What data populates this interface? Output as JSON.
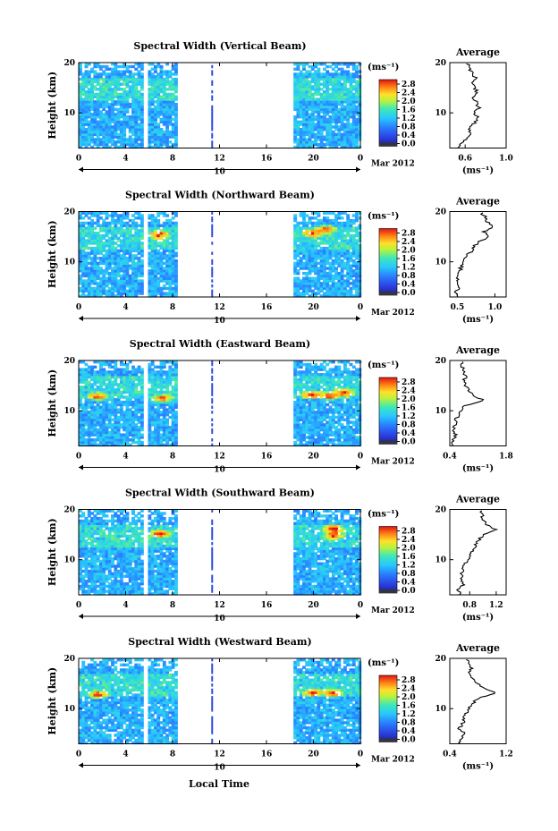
{
  "figure": {
    "x_axis_label": "Local Time",
    "date_label": "Mar 2012",
    "day_label": "10",
    "colorbar_unit": "(ms⁻¹)",
    "profile_unit": "(ms⁻¹)"
  },
  "chart_data": [
    {
      "type": "heatmap",
      "title": "Spectral Width (Vertical Beam)",
      "xlabel": "",
      "ylabel": "Height (km)",
      "xlim": [
        0,
        24
      ],
      "ylim": [
        3,
        20
      ],
      "x_ticks": [
        "0",
        "4",
        "8",
        "12",
        "16",
        "20",
        "0"
      ],
      "y_ticks": [
        "20",
        "10"
      ],
      "data_segments_hours": [
        [
          0,
          5.4
        ],
        [
          5.9,
          8.3
        ],
        [
          11.3,
          11.4
        ],
        [
          18.3,
          24
        ]
      ],
      "colorbar": {
        "min": 0.0,
        "max": 2.8,
        "ticks": [
          "2.8",
          "2.4",
          "2.0",
          "1.6",
          "1.2",
          "0.8",
          "0.4",
          "0.0"
        ]
      },
      "hot_spots": [],
      "average_profile": {
        "title": "Average",
        "xlabel": "(ms⁻¹)",
        "xlim": [
          0.45,
          1.0
        ],
        "x_ticks": [
          "0.6",
          "1.0"
        ],
        "y_ticks": [
          "20",
          "10"
        ],
        "height_km": [
          3,
          4,
          5,
          6,
          7,
          8,
          9,
          10,
          11,
          12,
          13,
          14,
          15,
          16,
          17,
          18,
          19,
          20
        ],
        "width_ms": [
          0.52,
          0.55,
          0.62,
          0.66,
          0.64,
          0.7,
          0.72,
          0.69,
          0.74,
          0.71,
          0.68,
          0.72,
          0.69,
          0.66,
          0.7,
          0.67,
          0.64,
          0.62
        ]
      }
    },
    {
      "type": "heatmap",
      "title": "Spectral Width (Northward Beam)",
      "xlabel": "",
      "ylabel": "Height (km)",
      "xlim": [
        0,
        24
      ],
      "ylim": [
        3,
        20
      ],
      "x_ticks": [
        "0",
        "4",
        "8",
        "12",
        "16",
        "20",
        "0"
      ],
      "y_ticks": [
        "20",
        "10"
      ],
      "data_segments_hours": [
        [
          0,
          5.4
        ],
        [
          5.9,
          8.3
        ],
        [
          11.3,
          11.4
        ],
        [
          18.3,
          24
        ]
      ],
      "colorbar": {
        "min": 0.0,
        "max": 2.8,
        "ticks": [
          "2.8",
          "2.4",
          "2.0",
          "1.6",
          "1.2",
          "0.8",
          "0.4",
          "0.0"
        ]
      },
      "hot_spots": [
        {
          "t": 6.7,
          "h": 15.2
        },
        {
          "t": 19.7,
          "h": 15.5
        },
        {
          "t": 20.9,
          "h": 16.3
        }
      ],
      "average_profile": {
        "title": "Average",
        "xlabel": "(ms⁻¹)",
        "xlim": [
          0.4,
          1.15
        ],
        "x_ticks": [
          "0.5",
          "1.0"
        ],
        "y_ticks": [
          "20",
          "10"
        ],
        "height_km": [
          3,
          4,
          5,
          6,
          7,
          8,
          9,
          10,
          11,
          12,
          13,
          14,
          15,
          16,
          17,
          18,
          19,
          20
        ],
        "width_ms": [
          0.5,
          0.48,
          0.52,
          0.49,
          0.5,
          0.53,
          0.55,
          0.58,
          0.6,
          0.68,
          0.72,
          0.8,
          0.92,
          0.85,
          0.98,
          0.9,
          0.88,
          0.8
        ]
      }
    },
    {
      "type": "heatmap",
      "title": "Spectral Width (Eastward Beam)",
      "xlabel": "",
      "ylabel": "Height (km)",
      "xlim": [
        0,
        24
      ],
      "ylim": [
        3,
        20
      ],
      "x_ticks": [
        "0",
        "4",
        "8",
        "12",
        "16",
        "20",
        "0"
      ],
      "y_ticks": [
        "20",
        "10"
      ],
      "data_segments_hours": [
        [
          0,
          5.4
        ],
        [
          5.9,
          8.3
        ],
        [
          11.3,
          11.4
        ],
        [
          18.3,
          24
        ]
      ],
      "colorbar": {
        "min": 0.0,
        "max": 2.8,
        "ticks": [
          "2.8",
          "2.4",
          "2.0",
          "1.6",
          "1.2",
          "0.8",
          "0.4",
          "0.0"
        ]
      },
      "hot_spots": [
        {
          "t": 1.5,
          "h": 12.6
        },
        {
          "t": 7.0,
          "h": 12.2
        },
        {
          "t": 19.7,
          "h": 13.0
        },
        {
          "t": 21.2,
          "h": 12.8
        },
        {
          "t": 22.5,
          "h": 13.4
        }
      ],
      "average_profile": {
        "title": "Average",
        "xlabel": "(ms⁻¹)",
        "xlim": [
          0.4,
          1.8
        ],
        "x_ticks": [
          "0.4",
          "1.8"
        ],
        "y_ticks": [
          "20",
          "10"
        ],
        "height_km": [
          3,
          4,
          5,
          6,
          7,
          8,
          9,
          10,
          11,
          12,
          13,
          14,
          15,
          16,
          17,
          18,
          19,
          20
        ],
        "width_ms": [
          0.5,
          0.48,
          0.55,
          0.5,
          0.52,
          0.55,
          0.6,
          0.65,
          0.8,
          1.25,
          1.0,
          0.9,
          0.8,
          0.75,
          0.8,
          0.7,
          0.72,
          0.7
        ]
      }
    },
    {
      "type": "heatmap",
      "title": "Spectral Width (Southward Beam)",
      "xlabel": "",
      "ylabel": "Height (km)",
      "xlim": [
        0,
        24
      ],
      "ylim": [
        3,
        20
      ],
      "x_ticks": [
        "0",
        "4",
        "8",
        "12",
        "16",
        "20",
        "0"
      ],
      "y_ticks": [
        "20",
        "10"
      ],
      "data_segments_hours": [
        [
          0,
          5.4
        ],
        [
          5.9,
          8.3
        ],
        [
          11.3,
          11.4
        ],
        [
          18.3,
          24
        ]
      ],
      "colorbar": {
        "min": 0.0,
        "max": 2.8,
        "ticks": [
          "2.8",
          "2.4",
          "2.0",
          "1.6",
          "1.2",
          "0.8",
          "0.4",
          "0.0"
        ]
      },
      "hot_spots": [
        {
          "t": 6.8,
          "h": 15.0
        },
        {
          "t": 21.6,
          "h": 16.0
        },
        {
          "t": 21.6,
          "h": 14.6
        }
      ],
      "average_profile": {
        "title": "Average",
        "xlabel": "(ms⁻¹)",
        "xlim": [
          0.5,
          1.35
        ],
        "x_ticks": [
          "0.8",
          "1.2"
        ],
        "y_ticks": [
          "20",
          "10"
        ],
        "height_km": [
          3,
          4,
          5,
          6,
          7,
          8,
          9,
          10,
          11,
          12,
          13,
          14,
          15,
          16,
          17,
          18,
          19,
          20
        ],
        "width_ms": [
          0.65,
          0.62,
          0.7,
          0.66,
          0.68,
          0.7,
          0.72,
          0.78,
          0.82,
          0.85,
          0.9,
          0.95,
          1.0,
          1.2,
          1.05,
          1.0,
          0.98,
          0.95
        ]
      }
    },
    {
      "type": "heatmap",
      "title": "Spectral Width (Westward Beam)",
      "xlabel": "Local Time",
      "ylabel": "Height (km)",
      "xlim": [
        0,
        24
      ],
      "ylim": [
        3,
        20
      ],
      "x_ticks": [
        "0",
        "4",
        "8",
        "12",
        "16",
        "20",
        "0"
      ],
      "y_ticks": [
        "20",
        "10"
      ],
      "data_segments_hours": [
        [
          0,
          5.4
        ],
        [
          5.9,
          8.3
        ],
        [
          11.3,
          11.4
        ],
        [
          18.3,
          24
        ]
      ],
      "colorbar": {
        "min": 0.0,
        "max": 2.8,
        "ticks": [
          "2.8",
          "2.4",
          "2.0",
          "1.6",
          "1.2",
          "0.8",
          "0.4",
          "0.0"
        ]
      },
      "hot_spots": [
        {
          "t": 1.6,
          "h": 12.6
        },
        {
          "t": 19.8,
          "h": 13.0
        },
        {
          "t": 21.5,
          "h": 12.9
        }
      ],
      "average_profile": {
        "title": "Average",
        "xlabel": "(ms⁻¹)",
        "xlim": [
          0.4,
          1.2
        ],
        "x_ticks": [
          "0.4",
          "1.2"
        ],
        "y_ticks": [
          "20",
          "10"
        ],
        "height_km": [
          3,
          4,
          5,
          6,
          7,
          8,
          9,
          10,
          11,
          12,
          13,
          14,
          15,
          16,
          17,
          18,
          19,
          20
        ],
        "width_ms": [
          0.52,
          0.55,
          0.6,
          0.54,
          0.58,
          0.6,
          0.62,
          0.68,
          0.72,
          0.8,
          1.05,
          0.9,
          0.78,
          0.72,
          0.68,
          0.7,
          0.66,
          0.64
        ]
      }
    }
  ]
}
